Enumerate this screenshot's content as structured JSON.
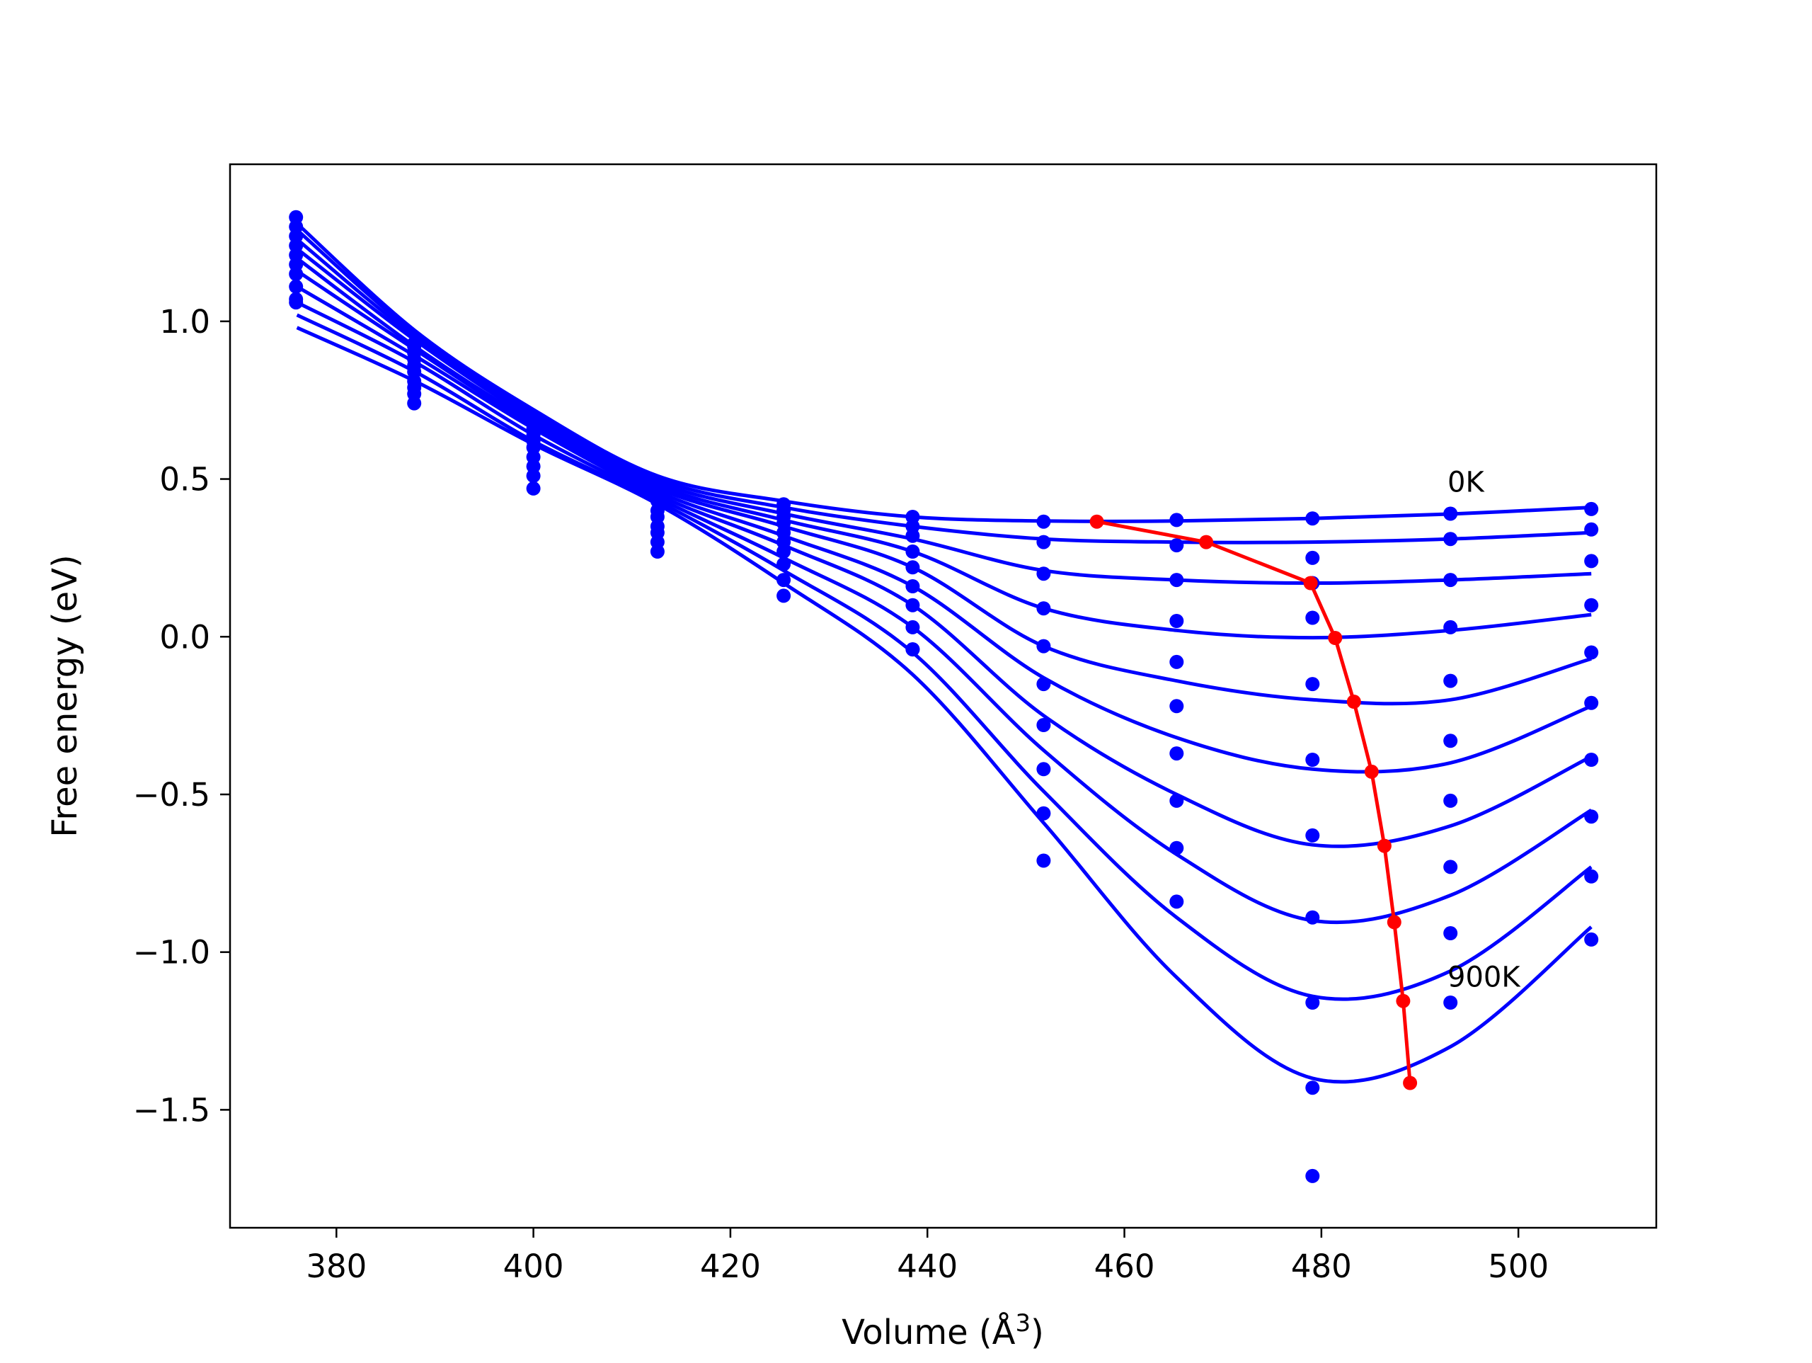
{
  "chart_data": {
    "type": "line",
    "title": "",
    "xlabel": "Volume (Å³)",
    "xlabel_prefix": "Volume (",
    "xlabel_unit_base": "Å",
    "xlabel_unit_sup": "3",
    "xlabel_suffix": ")",
    "ylabel": "Free energy (eV)",
    "xlim": [
      369.2,
      514.0
    ],
    "ylim": [
      -1.874,
      1.498
    ],
    "xticks": [
      380,
      400,
      420,
      440,
      460,
      480,
      500
    ],
    "xtick_labels": [
      "380",
      "400",
      "420",
      "440",
      "460",
      "480",
      "500"
    ],
    "yticks": [
      1.0,
      0.5,
      0.0,
      -0.5,
      -1.0,
      -1.5
    ],
    "ytick_labels": [
      "1.0",
      "0.5",
      "0.0",
      "−0.5",
      "−1.0",
      "−1.5"
    ],
    "grid": false,
    "legend": "none",
    "colors": {
      "curves": "#0000ff",
      "minima": "#ff0000",
      "axes": "#000000"
    },
    "annotations": [
      {
        "text": "0K",
        "x": 492.8,
        "y": 0.46
      },
      {
        "text": "900K",
        "x": 492.8,
        "y": -1.11
      }
    ],
    "volumes": [
      375.9,
      387.9,
      400.0,
      412.6,
      425.4,
      438.5,
      451.8,
      465.3,
      479.1,
      493.1,
      507.4
    ],
    "curve_x": [
      376.0,
      388.0,
      400.0,
      412.6,
      425.4,
      438.5,
      451.8,
      465.3,
      479.1,
      493.1,
      507.4
    ],
    "series": [
      {
        "name": "",
        "points": [
          1.33,
          0.93,
          0.69,
          0.49,
          0.42,
          0.38,
          0.365,
          0.37,
          0.375,
          0.39,
          0.405
        ],
        "curve": [
          1.31,
          0.97,
          0.72,
          0.51,
          0.43,
          0.38,
          0.367,
          0.367,
          0.375,
          0.389,
          0.41
        ]
      },
      {
        "name": "",
        "points": [
          1.3,
          0.92,
          0.68,
          0.47,
          0.4,
          0.35,
          0.3,
          0.29,
          0.25,
          0.31,
          0.34
        ],
        "curve": [
          1.29,
          0.96,
          0.71,
          0.5,
          0.41,
          0.35,
          0.31,
          0.3,
          0.3,
          0.31,
          0.33
        ]
      },
      {
        "name": "",
        "points": [
          1.27,
          0.9,
          0.66,
          0.45,
          0.38,
          0.32,
          0.2,
          0.18,
          0.17,
          0.18,
          0.24
        ],
        "curve": [
          1.26,
          0.95,
          0.7,
          0.49,
          0.39,
          0.31,
          0.21,
          0.18,
          0.17,
          0.18,
          0.2
        ]
      },
      {
        "name": "",
        "points": [
          1.24,
          0.88,
          0.64,
          0.43,
          0.36,
          0.27,
          0.09,
          0.05,
          0.06,
          0.03,
          0.1
        ],
        "curve": [
          1.23,
          0.94,
          0.69,
          0.48,
          0.37,
          0.27,
          0.09,
          0.02,
          -0.003,
          0.02,
          0.07
        ]
      },
      {
        "name": "",
        "points": [
          1.21,
          0.86,
          0.62,
          0.4,
          0.33,
          0.22,
          -0.03,
          -0.08,
          -0.15,
          -0.14,
          -0.05
        ],
        "curve": [
          1.2,
          0.92,
          0.68,
          0.47,
          0.35,
          0.22,
          -0.03,
          -0.14,
          -0.2,
          -0.2,
          -0.07
        ]
      },
      {
        "name": "",
        "points": [
          1.18,
          0.84,
          0.6,
          0.38,
          0.3,
          0.16,
          -0.15,
          -0.22,
          -0.39,
          -0.33,
          -0.21
        ],
        "curve": [
          1.16,
          0.91,
          0.67,
          0.46,
          0.32,
          0.16,
          -0.13,
          -0.32,
          -0.42,
          -0.4,
          -0.22
        ]
      },
      {
        "name": "",
        "points": [
          1.15,
          0.81,
          0.57,
          0.35,
          0.27,
          0.1,
          -0.28,
          -0.37,
          -0.63,
          -0.52,
          -0.39
        ],
        "curve": [
          1.11,
          0.89,
          0.66,
          0.45,
          0.29,
          0.1,
          -0.25,
          -0.5,
          -0.66,
          -0.6,
          -0.38
        ]
      },
      {
        "name": "",
        "points": [
          1.11,
          0.79,
          0.54,
          0.33,
          0.23,
          0.03,
          -0.42,
          -0.52,
          -0.89,
          -0.73,
          -0.57
        ],
        "curve": [
          1.06,
          0.87,
          0.64,
          0.44,
          0.25,
          0.03,
          -0.36,
          -0.69,
          -0.9,
          -0.82,
          -0.55
        ]
      },
      {
        "name": "",
        "points": [
          1.07,
          0.77,
          0.51,
          0.3,
          0.18,
          -0.04,
          -0.56,
          -0.67,
          -1.16,
          -0.94,
          -0.76
        ],
        "curve": [
          1.02,
          0.84,
          0.62,
          0.43,
          0.21,
          -0.05,
          -0.49,
          -0.89,
          -1.14,
          -1.06,
          -0.73
        ]
      },
      {
        "name": "",
        "points": [
          1.06,
          0.74,
          0.47,
          0.27,
          0.13,
          -0.04,
          -0.71,
          -0.84,
          -1.43,
          -1.16,
          -0.96
        ],
        "curve": [
          0.98,
          0.81,
          0.61,
          0.42,
          0.17,
          -0.12,
          -0.59,
          -1.08,
          -1.4,
          -1.3,
          -0.92
        ]
      }
    ],
    "extra_points": [
      {
        "x": 479.1,
        "y": -1.71
      }
    ],
    "minima": {
      "x": [
        457.2,
        468.3,
        478.9,
        481.4,
        483.3,
        485.1,
        486.4,
        487.4,
        488.3,
        489.0
      ],
      "y": [
        0.365,
        0.3,
        0.17,
        -0.004,
        -0.206,
        -0.428,
        -0.663,
        -0.905,
        -1.155,
        -1.415
      ]
    }
  }
}
